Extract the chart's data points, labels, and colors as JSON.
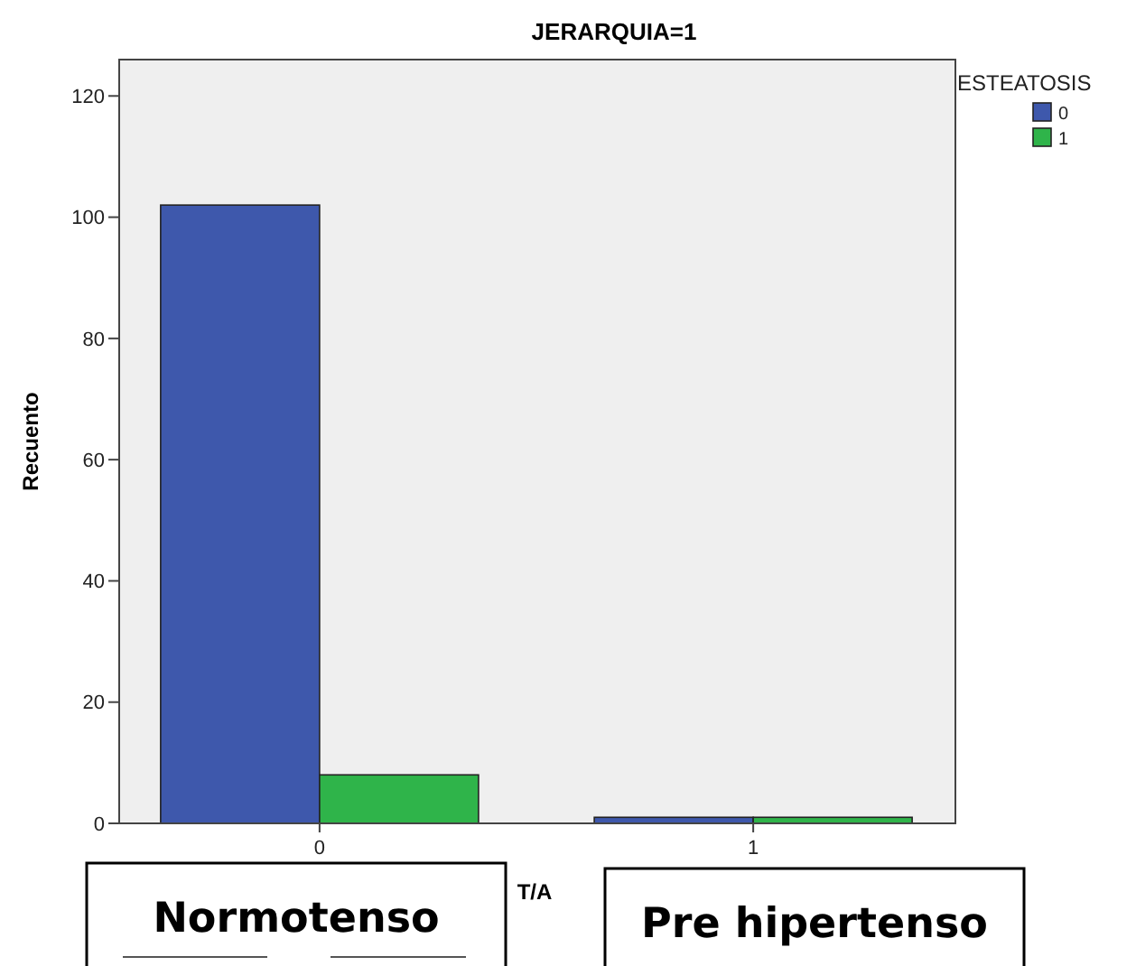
{
  "chart_data": {
    "type": "bar",
    "title": "JERARQUIA=1",
    "xlabel": "T/A",
    "ylabel": "Recuento",
    "legend_title": "ESTEATOSIS",
    "categories": [
      "0",
      "1"
    ],
    "series": [
      {
        "name": "0",
        "color": "#3e58ac",
        "values": [
          102,
          1
        ]
      },
      {
        "name": "1",
        "color": "#2fb44a",
        "values": [
          8,
          1
        ]
      }
    ],
    "ylim": [
      0,
      126
    ],
    "yticks": [
      0,
      20,
      40,
      60,
      80,
      100,
      120
    ],
    "grid": false,
    "legend": "top right",
    "annotations": [
      "Normotenso",
      "Pre hipertenso"
    ]
  }
}
